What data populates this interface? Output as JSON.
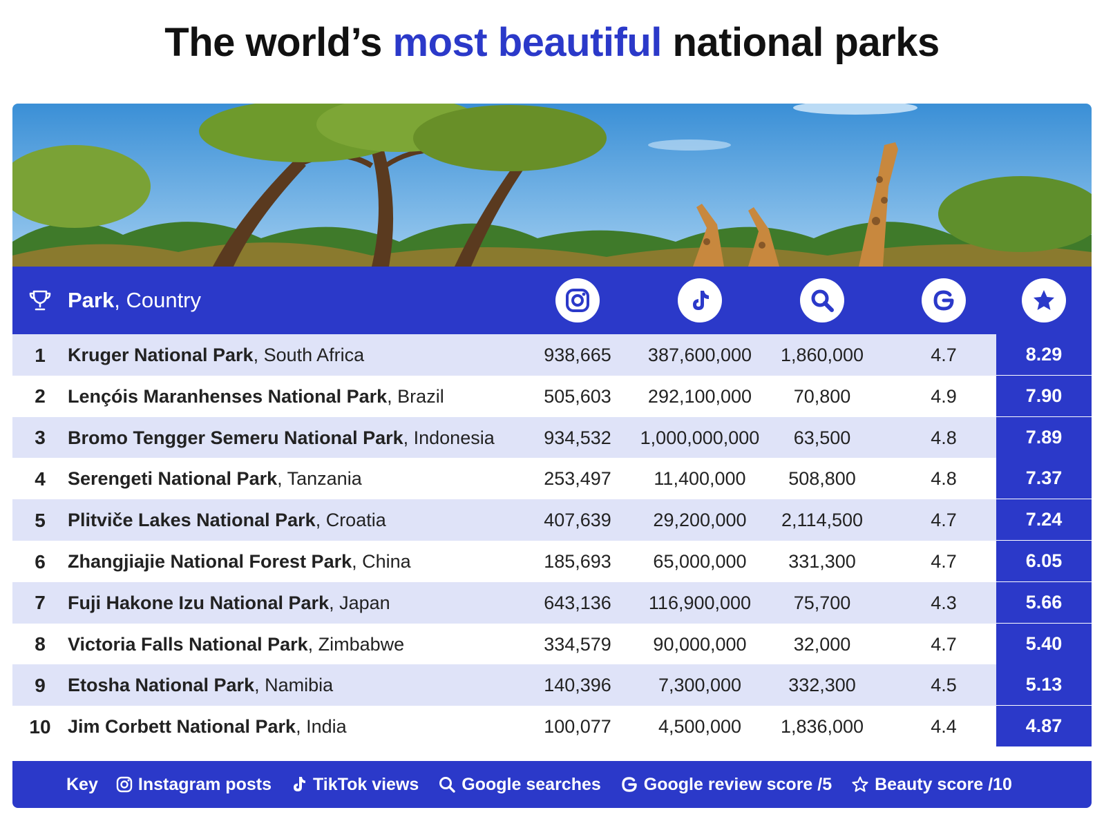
{
  "title": {
    "part1": "The world’s ",
    "accent": "most beautiful",
    "part2": " national parks",
    "accent_color": "#2b39c9"
  },
  "header": {
    "park_bold": "Park",
    "park_rest": ", Country",
    "icons": [
      "trophy-icon",
      "instagram-icon",
      "tiktok-icon",
      "search-icon",
      "google-icon",
      "star-icon"
    ]
  },
  "chart_data": {
    "type": "table",
    "columns": [
      "Rank",
      "Park, Country",
      "Instagram posts",
      "TikTok views",
      "Google searches",
      "Google review score /5",
      "Beauty score /10"
    ],
    "rows": [
      {
        "rank": "1",
        "park": "Kruger National Park",
        "country": ", South Africa",
        "instagram": "938,665",
        "tiktok": "387,600,000",
        "searches": "1,860,000",
        "review": "4.7",
        "beauty": "8.29"
      },
      {
        "rank": "2",
        "park": "Lençóis Maranhenses National Park",
        "country": ", Brazil",
        "instagram": "505,603",
        "tiktok": "292,100,000",
        "searches": "70,800",
        "review": "4.9",
        "beauty": "7.90"
      },
      {
        "rank": "3",
        "park": "Bromo Tengger Semeru National Park",
        "country": ", Indonesia",
        "instagram": "934,532",
        "tiktok": "1,000,000,000",
        "searches": "63,500",
        "review": "4.8",
        "beauty": "7.89"
      },
      {
        "rank": "4",
        "park": "Serengeti National Park",
        "country": ", Tanzania",
        "instagram": "253,497",
        "tiktok": "11,400,000",
        "searches": "508,800",
        "review": "4.8",
        "beauty": "7.37"
      },
      {
        "rank": "5",
        "park": "Plitviče Lakes National Park",
        "country": ", Croatia",
        "instagram": "407,639",
        "tiktok": "29,200,000",
        "searches": "2,114,500",
        "review": "4.7",
        "beauty": "7.24"
      },
      {
        "rank": "6",
        "park": "Zhangjiajie National Forest Park",
        "country": ", China",
        "instagram": "185,693",
        "tiktok": "65,000,000",
        "searches": "331,300",
        "review": "4.7",
        "beauty": "6.05"
      },
      {
        "rank": "7",
        "park": "Fuji Hakone Izu National Park",
        "country": ", Japan",
        "instagram": "643,136",
        "tiktok": "116,900,000",
        "searches": "75,700",
        "review": "4.3",
        "beauty": "5.66"
      },
      {
        "rank": "8",
        "park": "Victoria Falls National Park",
        "country": ", Zimbabwe",
        "instagram": "334,579",
        "tiktok": "90,000,000",
        "searches": "32,000",
        "review": "4.7",
        "beauty": "5.40"
      },
      {
        "rank": "9",
        "park": "Etosha National Park",
        "country": ", Namibia",
        "instagram": "140,396",
        "tiktok": "7,300,000",
        "searches": "332,300",
        "review": "4.5",
        "beauty": "5.13"
      },
      {
        "rank": "10",
        "park": "Jim Corbett National Park",
        "country": ", India",
        "instagram": "100,077",
        "tiktok": "4,500,000",
        "searches": "1,836,000",
        "review": "4.4",
        "beauty": "4.87"
      }
    ]
  },
  "key": {
    "label": "Key",
    "items": [
      {
        "icon": "instagram-icon",
        "text": "Instagram posts"
      },
      {
        "icon": "tiktok-icon",
        "text": "TikTok views"
      },
      {
        "icon": "search-icon",
        "text": "Google searches"
      },
      {
        "icon": "google-icon",
        "text": "Google review score /5"
      },
      {
        "icon": "star-icon",
        "text": "Beauty score /10"
      }
    ]
  },
  "colors": {
    "accent": "#2b39c9",
    "row_alt": "#dfe3f8",
    "row_plain": "#ffffff"
  }
}
